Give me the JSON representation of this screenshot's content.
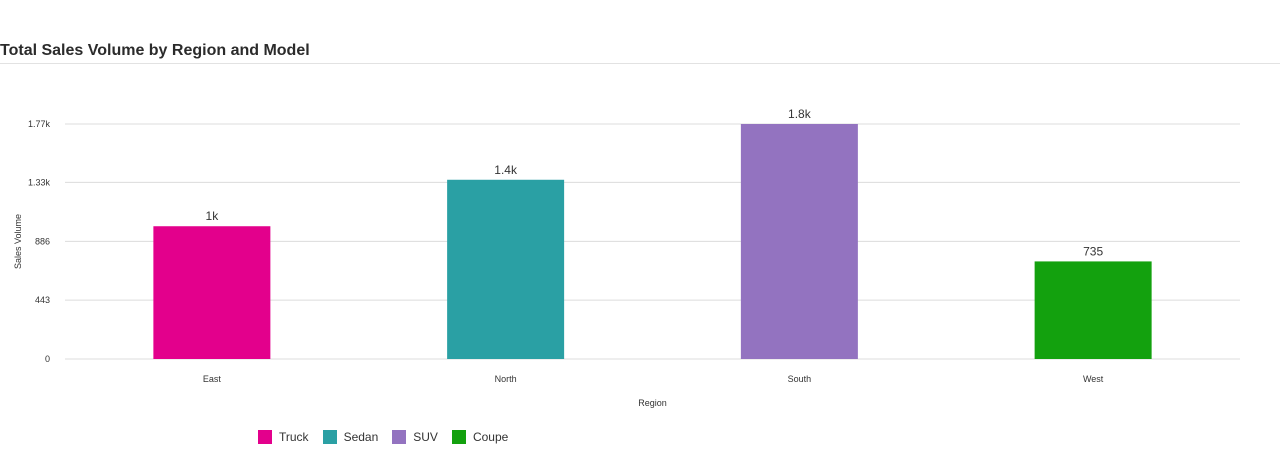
{
  "chart_data": {
    "type": "bar",
    "title": "Total Sales Volume by Region and Model",
    "xlabel": "Region",
    "ylabel": "Sales Volume",
    "categories": [
      "East",
      "North",
      "South",
      "West"
    ],
    "series": [
      {
        "name": "Truck",
        "category": "East",
        "value": 1000,
        "data_label": "1k",
        "color": "#e3008c"
      },
      {
        "name": "Sedan",
        "category": "North",
        "value": 1350,
        "data_label": "1.4k",
        "color": "#2aa0a4"
      },
      {
        "name": "SUV",
        "category": "South",
        "value": 1770,
        "data_label": "1.8k",
        "color": "#9373c0"
      },
      {
        "name": "Coupe",
        "category": "West",
        "value": 735,
        "data_label": "735",
        "color": "#13a10e"
      }
    ],
    "y_ticks": [
      0,
      443,
      886,
      1330,
      1770
    ],
    "y_tick_labels": [
      "0",
      "443",
      "886",
      "1.33k",
      "1.77k"
    ],
    "ylim": [
      0,
      1770
    ],
    "grid": true,
    "legend_position": "bottom-left"
  }
}
